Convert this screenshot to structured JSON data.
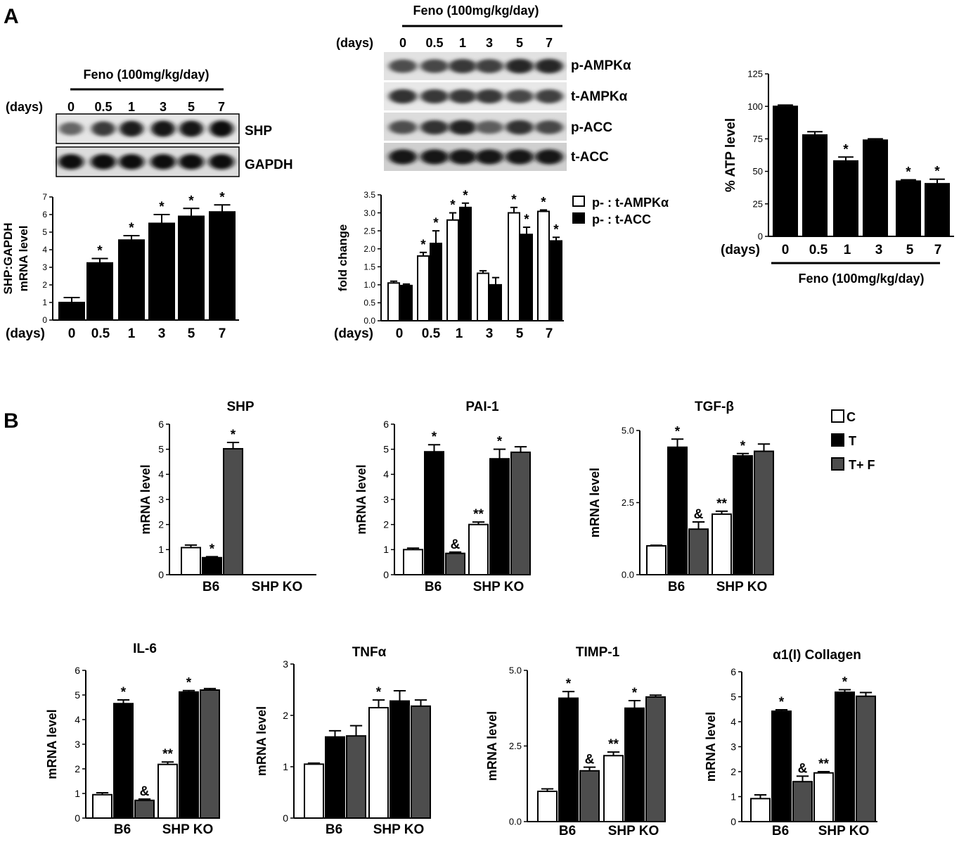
{
  "panel_a_label": "A",
  "panel_b_label": "B",
  "colors": {
    "control": "#ffffff",
    "treated": "#000000",
    "treated_feno": "#4d4d4d",
    "axis": "#000000"
  },
  "blot_left": {
    "treatment": "Feno (100mg/kg/day)",
    "days_label": "(days)",
    "days": [
      "0",
      "0.5",
      "1",
      "3",
      "5",
      "7"
    ],
    "bands": [
      "SHP",
      "GAPDH"
    ]
  },
  "blot_mid": {
    "treatment": "Feno (100mg/kg/day)",
    "days_label": "(days)",
    "days": [
      "0",
      "0.5",
      "1",
      "3",
      "5",
      "7"
    ],
    "bands": [
      "p-AMPKα",
      "t-AMPKα",
      "p-ACC",
      "t-ACC"
    ]
  },
  "chart_data": [
    {
      "id": "shp_timecourse",
      "type": "bar",
      "title": "",
      "ylabel": "SHP:GAPDH mRNA level",
      "xlabel": "(days)",
      "categories": [
        "0",
        "0.5",
        "1",
        "3",
        "5",
        "7"
      ],
      "ylim": [
        0,
        7
      ],
      "yticks": [
        "0",
        "1",
        "2",
        "3",
        "4",
        "5",
        "6",
        "7"
      ],
      "series": [
        {
          "values": [
            1.0,
            3.25,
            4.55,
            5.5,
            5.9,
            6.15
          ],
          "errors": [
            0.28,
            0.25,
            0.25,
            0.5,
            0.45,
            0.4
          ],
          "marks": [
            "",
            "*",
            "*",
            "*",
            "*",
            "*"
          ]
        }
      ]
    },
    {
      "id": "ampk_acc_fold",
      "type": "bar",
      "title": "",
      "ylabel": "fold change",
      "xlabel": "(days)",
      "categories": [
        "0",
        "0.5",
        "1",
        "3",
        "5",
        "7"
      ],
      "ylim": [
        0,
        3.5
      ],
      "yticks": [
        "0.0",
        "0.5",
        "1.0",
        "1.5",
        "2.0",
        "2.5",
        "3.0",
        "3.5"
      ],
      "legend": [
        "p- : t-AMPKα",
        "p- : t-ACC"
      ],
      "series": [
        {
          "name": "p- : t-AMPKα",
          "values": [
            1.05,
            1.8,
            2.8,
            1.32,
            3.0,
            3.04
          ],
          "errors": [
            0.05,
            0.1,
            0.2,
            0.07,
            0.15,
            0.04
          ],
          "marks": [
            "",
            "*",
            "*",
            "",
            "*",
            "*"
          ]
        },
        {
          "name": "p- : t-ACC",
          "values": [
            0.98,
            2.15,
            3.15,
            1.0,
            2.4,
            2.22
          ],
          "errors": [
            0.04,
            0.35,
            0.12,
            0.2,
            0.2,
            0.1
          ],
          "marks": [
            "",
            "*",
            "*",
            "",
            "*",
            "*"
          ]
        }
      ]
    },
    {
      "id": "atp_level",
      "type": "bar",
      "title": "",
      "ylabel": "% ATP level",
      "xlabel": "(days)",
      "treatment": "Feno (100mg/kg/day)",
      "categories": [
        "0",
        "0.5",
        "1",
        "3",
        "5",
        "7"
      ],
      "ylim": [
        0,
        125
      ],
      "yticks": [
        "0",
        "25",
        "50",
        "75",
        "100",
        "125"
      ],
      "series": [
        {
          "values": [
            100,
            78,
            58,
            74,
            42.5,
            40.5
          ],
          "errors": [
            1,
            2.5,
            3,
            1,
            1,
            3.5
          ],
          "marks": [
            "",
            "",
            "*",
            "",
            "*",
            "*"
          ]
        }
      ]
    },
    {
      "id": "shp_mrna",
      "type": "bar",
      "title": "SHP",
      "ylabel": "mRNA level",
      "categories": [
        "B6",
        "SHP KO"
      ],
      "ylim": [
        0,
        6
      ],
      "yticks": [
        "0",
        "1",
        "2",
        "3",
        "4",
        "5",
        "6"
      ],
      "series": [
        {
          "name": "C",
          "values": [
            1.08,
            null
          ],
          "errors": [
            0.1,
            null
          ],
          "marks": [
            "",
            ""
          ]
        },
        {
          "name": "T",
          "values": [
            0.68,
            null
          ],
          "errors": [
            0.04,
            null
          ],
          "marks": [
            "*",
            ""
          ]
        },
        {
          "name": "T+ F",
          "values": [
            5.02,
            null
          ],
          "errors": [
            0.25,
            null
          ],
          "marks": [
            "*",
            ""
          ]
        }
      ]
    },
    {
      "id": "pai1_mrna",
      "type": "bar",
      "title": "PAI-1",
      "ylabel": "mRNA level",
      "categories": [
        "B6",
        "SHP KO"
      ],
      "ylim": [
        0,
        6
      ],
      "yticks": [
        "0",
        "1",
        "2",
        "3",
        "4",
        "5",
        "6"
      ],
      "series": [
        {
          "name": "C",
          "values": [
            1.0,
            2.0
          ],
          "errors": [
            0.06,
            0.1
          ],
          "marks": [
            "",
            "**"
          ]
        },
        {
          "name": "T",
          "values": [
            4.9,
            4.62
          ],
          "errors": [
            0.28,
            0.38
          ],
          "marks": [
            "*",
            "*"
          ]
        },
        {
          "name": "T+ F",
          "values": [
            0.85,
            4.88
          ],
          "errors": [
            0.05,
            0.22
          ],
          "marks": [
            "&",
            ""
          ]
        }
      ]
    },
    {
      "id": "tgfb_mrna",
      "type": "bar",
      "title": "TGF-β",
      "ylabel": "mRNA level",
      "categories": [
        "B6",
        "SHP KO"
      ],
      "ylim": [
        0,
        5
      ],
      "yticks": [
        "0.0",
        "2.5",
        "5.0"
      ],
      "series": [
        {
          "name": "C",
          "values": [
            1.0,
            2.1
          ],
          "errors": [
            0.02,
            0.1
          ],
          "marks": [
            "",
            "**"
          ]
        },
        {
          "name": "T",
          "values": [
            4.42,
            4.12
          ],
          "errors": [
            0.28,
            0.08
          ],
          "marks": [
            "*",
            "*"
          ]
        },
        {
          "name": "T+ F",
          "values": [
            1.58,
            4.28
          ],
          "errors": [
            0.25,
            0.25
          ],
          "marks": [
            "&",
            ""
          ]
        }
      ]
    },
    {
      "id": "il6_mrna",
      "type": "bar",
      "title": "IL-6",
      "ylabel": "mRNA level",
      "categories": [
        "B6",
        "SHP KO"
      ],
      "ylim": [
        0,
        6
      ],
      "yticks": [
        "0",
        "1",
        "2",
        "3",
        "4",
        "5",
        "6"
      ],
      "series": [
        {
          "name": "C",
          "values": [
            0.95,
            2.18
          ],
          "errors": [
            0.08,
            0.1
          ],
          "marks": [
            "",
            "**"
          ]
        },
        {
          "name": "T",
          "values": [
            4.65,
            5.12
          ],
          "errors": [
            0.15,
            0.06
          ],
          "marks": [
            "*",
            "*"
          ]
        },
        {
          "name": "T+ F",
          "values": [
            0.72,
            5.2
          ],
          "errors": [
            0.05,
            0.06
          ],
          "marks": [
            "&",
            ""
          ]
        }
      ]
    },
    {
      "id": "tnfa_mrna",
      "type": "bar",
      "title": "TNFα",
      "ylabel": "mRNA level",
      "categories": [
        "B6",
        "SHP KO"
      ],
      "ylim": [
        0,
        3
      ],
      "yticks": [
        "0",
        "1",
        "2",
        "3"
      ],
      "series": [
        {
          "name": "C",
          "values": [
            1.05,
            2.15
          ],
          "errors": [
            0.02,
            0.15
          ],
          "marks": [
            "",
            "*"
          ]
        },
        {
          "name": "T",
          "values": [
            1.58,
            2.28
          ],
          "errors": [
            0.12,
            0.2
          ],
          "marks": [
            "",
            ""
          ]
        },
        {
          "name": "T+ F",
          "values": [
            1.6,
            2.18
          ],
          "errors": [
            0.2,
            0.12
          ],
          "marks": [
            "",
            ""
          ]
        }
      ]
    },
    {
      "id": "timp1_mrna",
      "type": "bar",
      "title": "TIMP-1",
      "ylabel": "mRNA level",
      "categories": [
        "B6",
        "SHP KO"
      ],
      "ylim": [
        0,
        5
      ],
      "yticks": [
        "0.0",
        "2.5",
        "5.0"
      ],
      "series": [
        {
          "name": "C",
          "values": [
            1.0,
            2.18
          ],
          "errors": [
            0.08,
            0.12
          ],
          "marks": [
            "",
            "**"
          ]
        },
        {
          "name": "T",
          "values": [
            4.08,
            3.75
          ],
          "errors": [
            0.22,
            0.25
          ],
          "marks": [
            "*",
            "*"
          ]
        },
        {
          "name": "T+ F",
          "values": [
            1.68,
            4.12
          ],
          "errors": [
            0.12,
            0.06
          ],
          "marks": [
            "&",
            ""
          ]
        }
      ]
    },
    {
      "id": "col1a1_mrna",
      "type": "bar",
      "title": "α1(I) Collagen",
      "ylabel": "mRNA level",
      "categories": [
        "B6",
        "SHP KO"
      ],
      "ylim": [
        0,
        6
      ],
      "yticks": [
        "0",
        "1",
        "2",
        "3",
        "4",
        "5",
        "6"
      ],
      "series": [
        {
          "name": "C",
          "values": [
            0.92,
            1.95
          ],
          "errors": [
            0.15,
            0.05
          ],
          "marks": [
            "",
            "**"
          ]
        },
        {
          "name": "T",
          "values": [
            4.42,
            5.18
          ],
          "errors": [
            0.06,
            0.1
          ],
          "marks": [
            "*",
            "*"
          ]
        },
        {
          "name": "T+ F",
          "values": [
            1.6,
            5.02
          ],
          "errors": [
            0.22,
            0.15
          ],
          "marks": [
            "&",
            ""
          ]
        }
      ]
    }
  ],
  "legend_b": [
    {
      "label": "C"
    },
    {
      "label": "T"
    },
    {
      "label": "T+ F"
    }
  ]
}
